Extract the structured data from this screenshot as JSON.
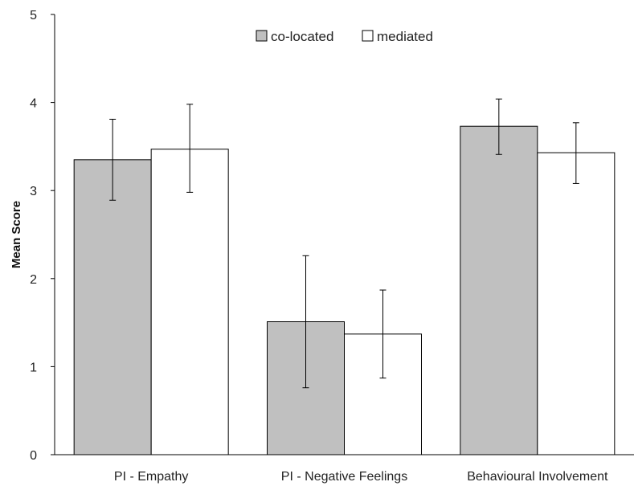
{
  "chart_data": {
    "type": "bar",
    "title": "",
    "xlabel": "",
    "ylabel": "Mean Score",
    "ylim": [
      0,
      5
    ],
    "yticks": [
      0,
      1,
      2,
      3,
      4,
      5
    ],
    "categories": [
      "PI - Empathy",
      "PI - Negative Feelings",
      "Behavioural Involvement"
    ],
    "series": [
      {
        "name": "co-located",
        "color": "#c0c0c0",
        "values": [
          3.35,
          1.51,
          3.73
        ],
        "error_low": [
          2.89,
          0.76,
          3.41
        ],
        "error_high": [
          3.81,
          2.26,
          4.04
        ]
      },
      {
        "name": "mediated",
        "color": "#ffffff",
        "values": [
          3.47,
          1.37,
          3.43
        ],
        "error_low": [
          2.98,
          0.87,
          3.08
        ],
        "error_high": [
          3.98,
          1.87,
          3.77
        ]
      }
    ],
    "legend_position": "top-center",
    "grid": false
  }
}
